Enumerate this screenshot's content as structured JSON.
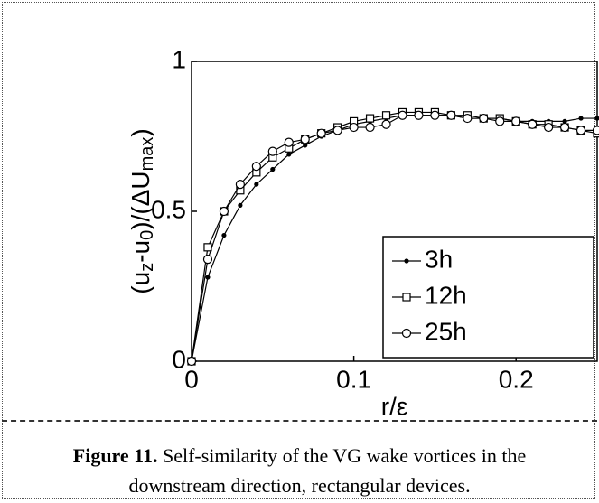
{
  "chart_data": {
    "type": "line",
    "xlabel": "r/ε",
    "ylabel": [
      {
        "text": "(u"
      },
      {
        "text": "z",
        "sub": true
      },
      {
        "text": "-u"
      },
      {
        "text": "0",
        "sub": true
      },
      {
        "text": ")/(ΔU"
      },
      {
        "text": "max",
        "sub": true
      },
      {
        "text": ")"
      }
    ],
    "x": [
      0,
      0.01,
      0.02,
      0.03,
      0.04,
      0.05,
      0.06,
      0.07,
      0.08,
      0.09,
      0.1,
      0.11,
      0.12,
      0.13,
      0.14,
      0.15,
      0.16,
      0.17,
      0.18,
      0.19,
      0.2,
      0.21,
      0.22,
      0.23,
      0.24,
      0.25
    ],
    "series": [
      {
        "name": "3h",
        "color": "#000000",
        "marker": "dot",
        "values": [
          0,
          0.28,
          0.42,
          0.52,
          0.59,
          0.64,
          0.69,
          0.72,
          0.75,
          0.77,
          0.79,
          0.8,
          0.81,
          0.82,
          0.82,
          0.82,
          0.82,
          0.81,
          0.81,
          0.81,
          0.8,
          0.8,
          0.8,
          0.8,
          0.81,
          0.81
        ]
      },
      {
        "name": "12h",
        "color": "#000000",
        "marker": "square",
        "values": [
          0,
          0.38,
          0.5,
          0.57,
          0.63,
          0.68,
          0.71,
          0.74,
          0.76,
          0.78,
          0.8,
          0.81,
          0.82,
          0.83,
          0.83,
          0.83,
          0.82,
          0.82,
          0.81,
          0.81,
          0.8,
          0.79,
          0.79,
          0.78,
          0.77,
          0.76
        ]
      },
      {
        "name": "25h",
        "color": "#000000",
        "marker": "circle",
        "values": [
          0,
          0.34,
          0.5,
          0.59,
          0.65,
          0.7,
          0.73,
          0.74,
          0.76,
          0.77,
          0.78,
          0.78,
          0.79,
          0.82,
          0.82,
          0.82,
          0.82,
          0.81,
          0.81,
          0.8,
          0.8,
          0.79,
          0.78,
          0.78,
          0.77,
          0.77
        ]
      }
    ],
    "xlim": [
      0,
      0.25
    ],
    "xticks": [
      0,
      0.1,
      0.2
    ],
    "ylim": [
      0,
      1
    ],
    "yticks": [
      0,
      0.5,
      1
    ],
    "legend": "lower right",
    "grid": false
  },
  "caption": {
    "label": "Figure 11.",
    "text": "Self-similarity of the VG wake vortices in the downstream direction, rectangular devices."
  }
}
